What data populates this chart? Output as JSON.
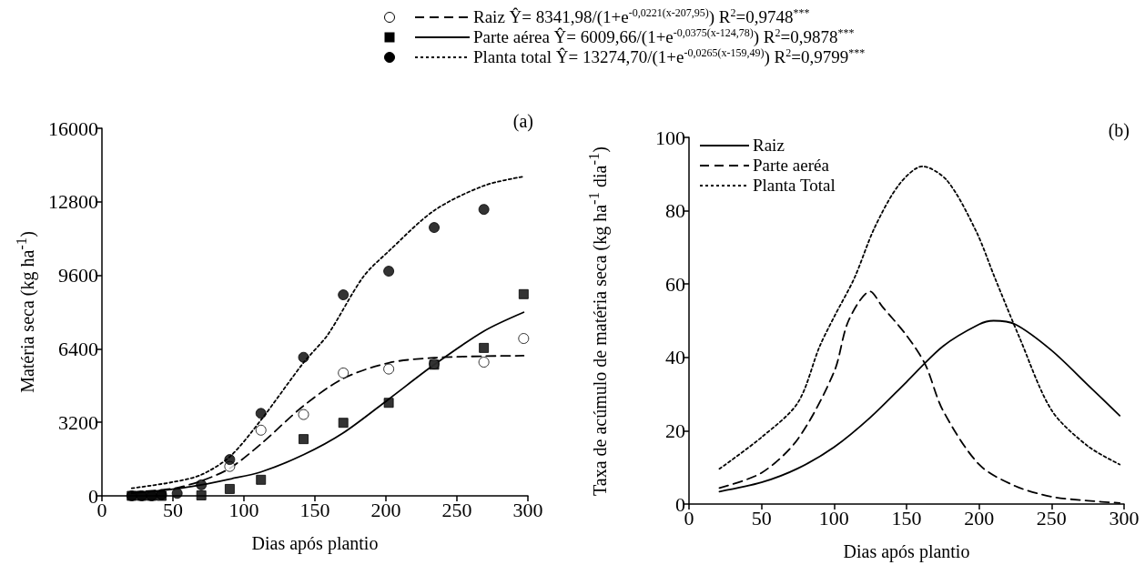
{
  "chart_data": [
    {
      "type": "scatter",
      "xlabel": "Dias após plantio",
      "ylabel": "Matéria seca (kg ha$^{-1}$)",
      "annotations": [
        "(a)"
      ],
      "xlim": [
        0,
        300
      ],
      "xticks": [
        0,
        50,
        100,
        150,
        200,
        250,
        300
      ],
      "ylim": [
        0,
        16000
      ],
      "yticks": [
        0,
        3200,
        6400,
        9600,
        12800,
        16000
      ],
      "grid": false,
      "legend": "top",
      "series": [
        {
          "name": "Raiz Ŷ= 8341,98/(1+e$^{-0,0221(x-207,95)}$)  R$^{2}$=0,9748$^{***}$",
          "marker": "circle",
          "color": "#ffffff",
          "x": [
            90,
            112,
            142,
            170,
            202,
            234,
            269,
            297
          ],
          "values": [
            1280,
            2860,
            3540,
            5350,
            5520,
            5740,
            5820,
            6850
          ]
        },
        {
          "type": "line",
          "line_style": "dashed",
          "color": "#000000",
          "x": [
            21,
            50,
            70,
            90,
            112,
            142,
            170,
            202,
            234,
            269,
            297
          ],
          "values": [
            160,
            320,
            650,
            1200,
            2260,
            3920,
            5110,
            5790,
            6010,
            6080,
            6100
          ]
        },
        {
          "name": "Parte aérea  Ŷ= 6009,66/(1+e$^{-0,0375(x-124,78)}$)  R$^{2}$=0,9878$^{***}$",
          "marker": "square",
          "color": "#000000",
          "x": [
            21,
            28,
            35,
            42,
            53,
            70,
            90,
            112,
            142,
            170,
            202,
            234,
            269,
            297
          ],
          "values": [
            0,
            0,
            0,
            0,
            null,
            20,
            300,
            700,
            2470,
            3180,
            4050,
            5710,
            6440,
            8780
          ]
        },
        {
          "type": "line",
          "line_style": "solid",
          "color": "#000000",
          "x": [
            21,
            50,
            70,
            90,
            112,
            142,
            170,
            202,
            234,
            269,
            297
          ],
          "values": [
            110,
            290,
            480,
            730,
            1040,
            1790,
            2740,
            4210,
            5710,
            7170,
            7990
          ]
        },
        {
          "name": "Planta total  Ŷ= 13274,70/(1+e$^{-0,0265(x-159,49)}$)  R$^{2}$=0,9799$^{***}$",
          "marker": "circle",
          "color": "#000000",
          "x": [
            21,
            28,
            35,
            42,
            53,
            70,
            90,
            112,
            142,
            170,
            202,
            234,
            269
          ],
          "values": [
            0,
            0,
            0,
            50,
            110,
            480,
            1580,
            3590,
            6030,
            8750,
            9780,
            11680,
            12470
          ]
        },
        {
          "type": "line",
          "line_style": "dotted",
          "color": "#000000",
          "x": [
            21,
            50,
            70,
            90,
            112,
            142,
            159,
            184,
            202,
            234,
            269,
            297
          ],
          "values": [
            330,
            600,
            920,
            1700,
            3300,
            5800,
            7010,
            9530,
            10650,
            12420,
            13500,
            13900
          ]
        }
      ]
    },
    {
      "type": "line",
      "xlabel": "Dias após plantio",
      "ylabel": "Taxa de acúmulo de matéria seca (kg ha$^{-1}$ dia$^{-1}$)",
      "annotations": [
        "(b)"
      ],
      "xlim": [
        0,
        300
      ],
      "xticks": [
        0,
        50,
        100,
        150,
        200,
        250,
        300
      ],
      "ylim": [
        0,
        100
      ],
      "yticks": [
        0,
        20,
        40,
        60,
        80,
        100
      ],
      "grid": false,
      "legend": "top left",
      "series": [
        {
          "name": "Raiz",
          "line_style": "solid",
          "color": "#000000",
          "x": [
            21,
            50,
            75,
            100,
            125,
            150,
            175,
            200,
            210,
            225,
            250,
            275,
            297
          ],
          "values": [
            3.4,
            5.9,
            9.7,
            15.5,
            23.6,
            33.3,
            43,
            49,
            50,
            49,
            41.9,
            32.5,
            24.1
          ]
        },
        {
          "name": "Parte aeréa",
          "line_style": "dashed",
          "color": "#000000",
          "x": [
            21,
            50,
            75,
            100,
            110,
            125,
            133,
            150,
            163,
            175,
            200,
            225,
            250,
            275,
            297
          ],
          "values": [
            4.4,
            8.5,
            17.7,
            36,
            50,
            58,
            54,
            46,
            38,
            25.6,
            10.8,
            4.9,
            2,
            0.9,
            0.3
          ]
        },
        {
          "name": "Planta Total",
          "line_style": "dotted",
          "color": "#000000",
          "x": [
            21,
            50,
            75,
            90,
            100,
            114,
            128,
            145,
            161,
            178,
            198,
            211,
            228,
            250,
            275,
            297
          ],
          "values": [
            9.6,
            18.2,
            27.6,
            42.9,
            51,
            61.6,
            75.4,
            87.2,
            92.1,
            88.2,
            74.4,
            61.6,
            45.3,
            25.6,
            15.8,
            10.8
          ]
        }
      ]
    }
  ]
}
